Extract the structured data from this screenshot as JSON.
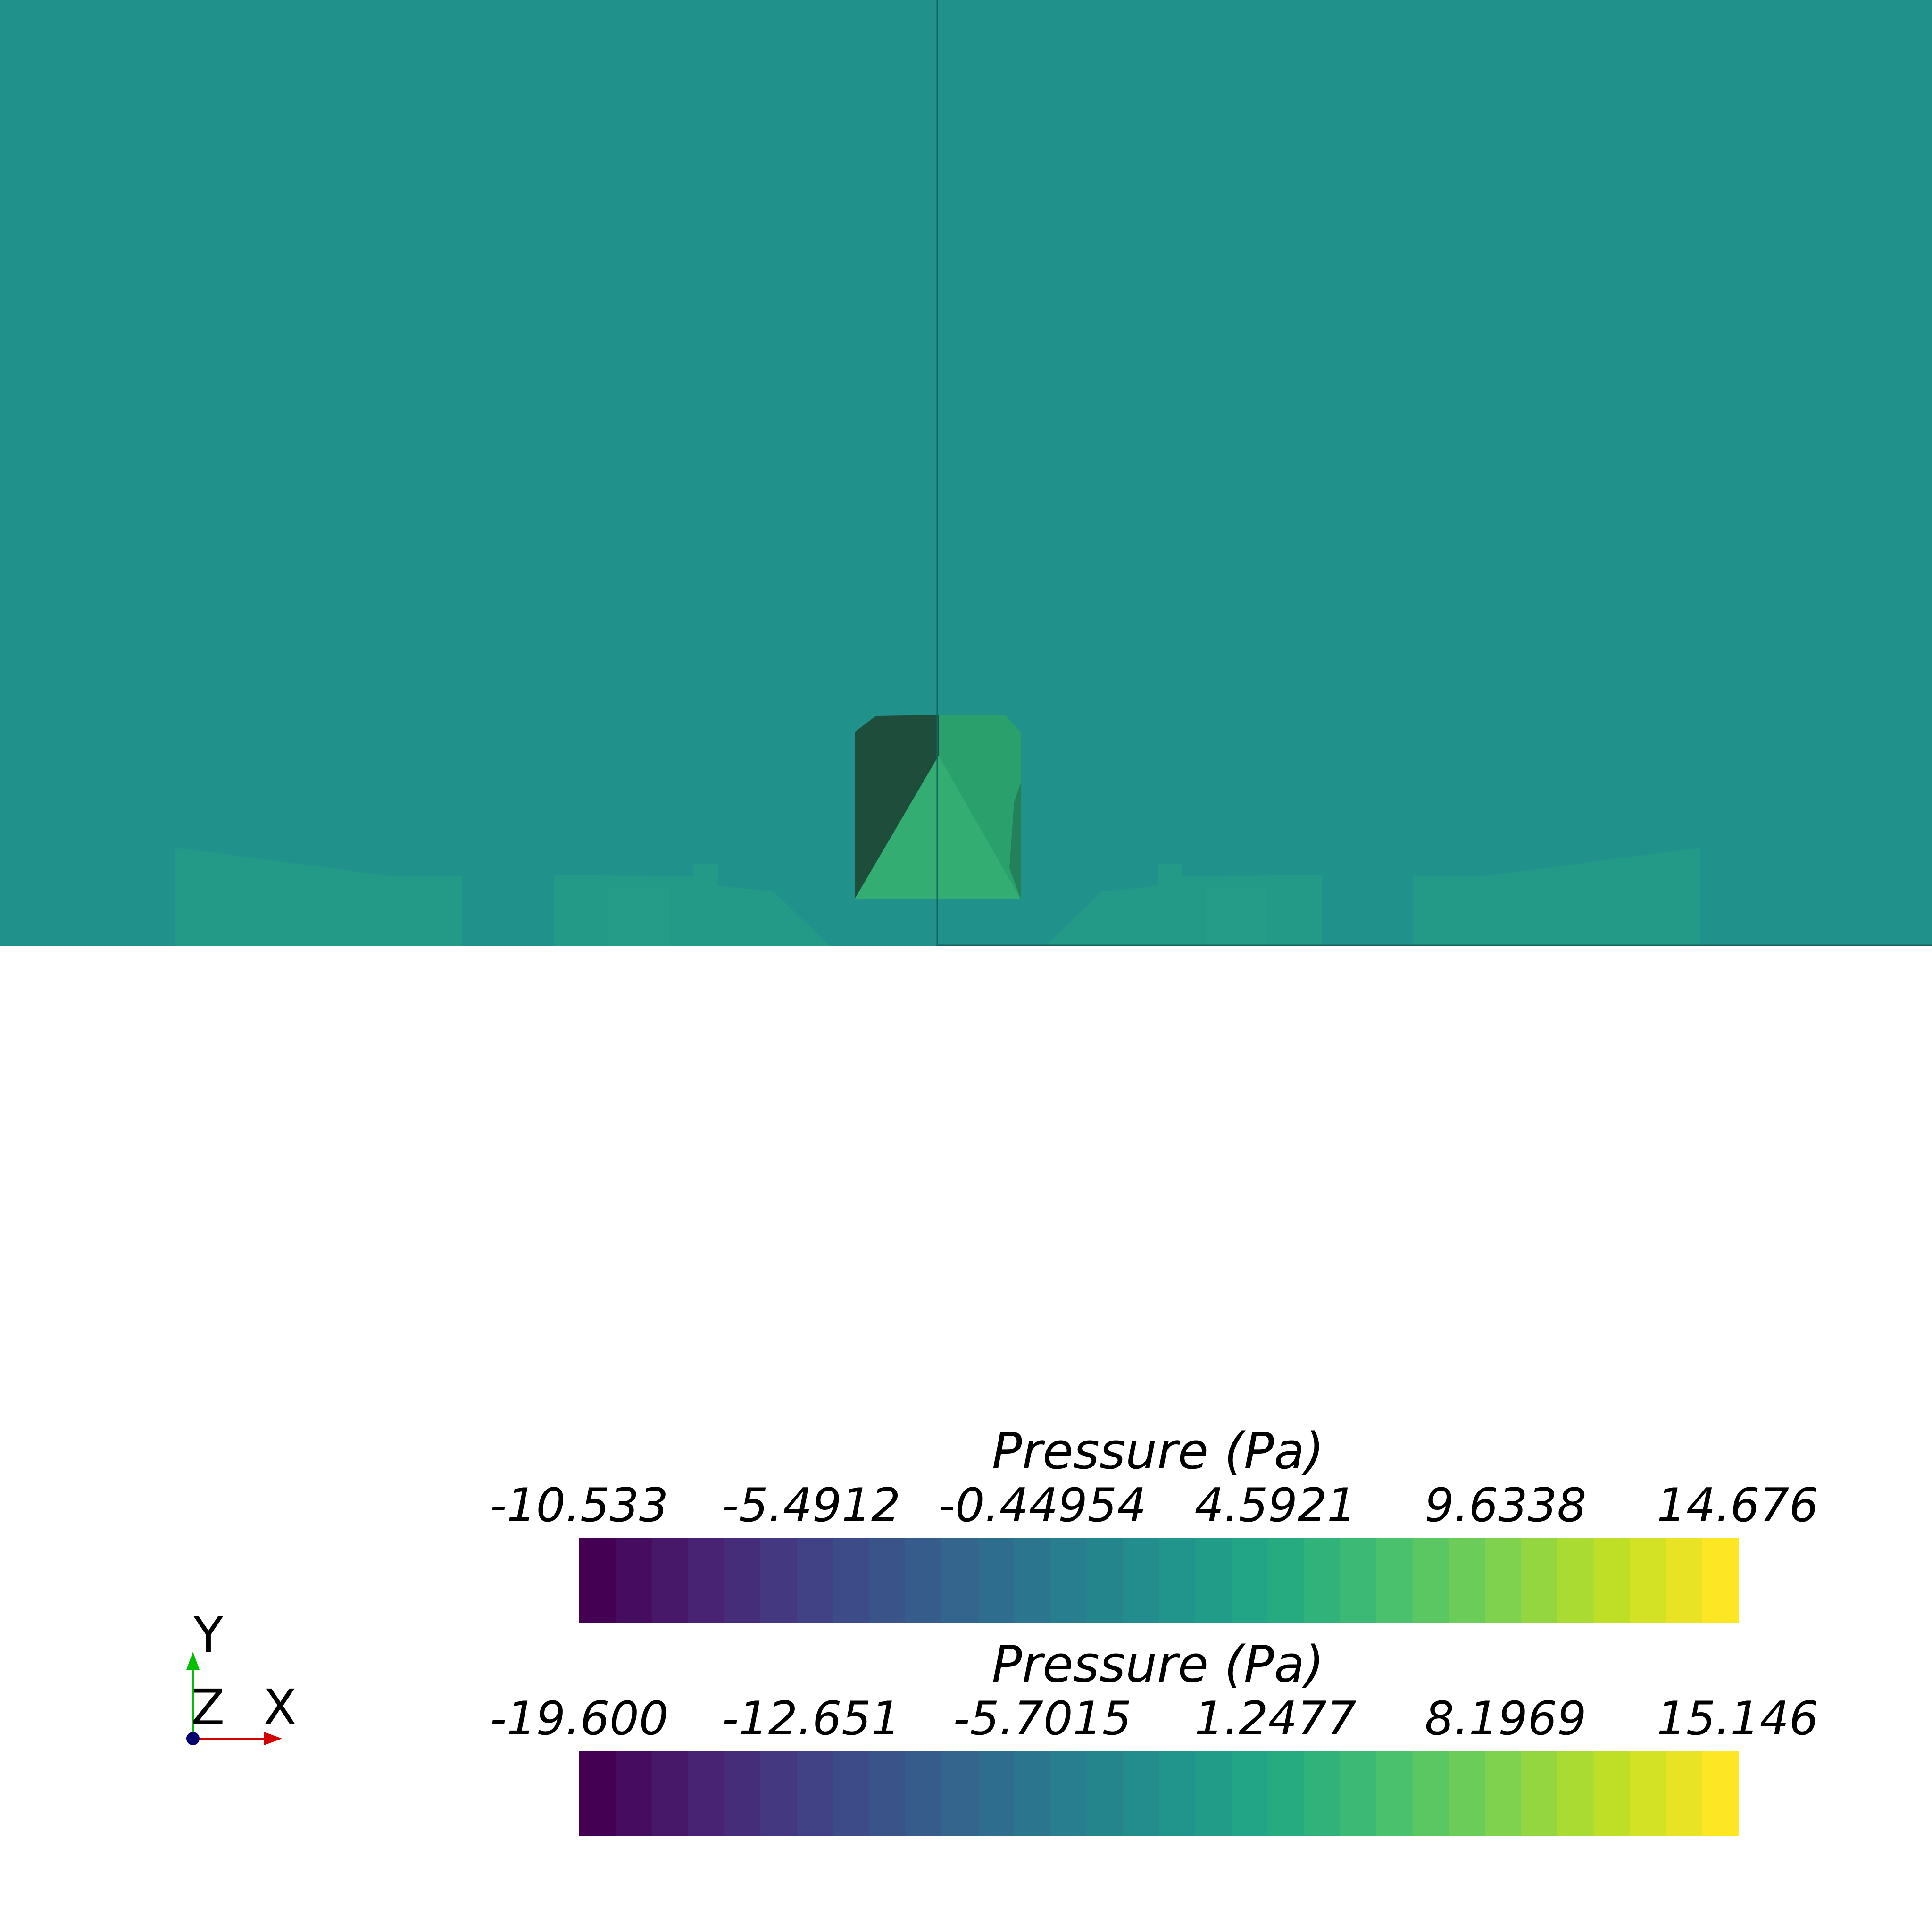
{
  "scene": {
    "background": "#ffffff",
    "domain_color": "#21918c",
    "body_colors": [
      "#1e4d3c",
      "#2ea56f",
      "#34ad72"
    ],
    "boundary_line_color": "#16645f"
  },
  "colorbars": [
    {
      "title": "Pressure (Pa)",
      "ticks": [
        "-10.533",
        "-5.4912",
        "-0.44954",
        "4.5921",
        "9.6338",
        "14.676"
      ],
      "range": [
        -10.533,
        14.676
      ],
      "colormap": "viridis",
      "bands": 32
    },
    {
      "title": "Pressure (Pa)",
      "ticks": [
        "-19.600",
        "-12.651",
        "-5.7015",
        "1.2477",
        "8.1969",
        "15.146"
      ],
      "range": [
        -19.6,
        15.146
      ],
      "colormap": "viridis",
      "bands": 32
    }
  ],
  "orientation_axes": {
    "x_label": "X",
    "y_label": "Y",
    "z_label": "Z",
    "x_color": "#d40000",
    "y_color": "#00c000",
    "z_color": "#00006e"
  }
}
